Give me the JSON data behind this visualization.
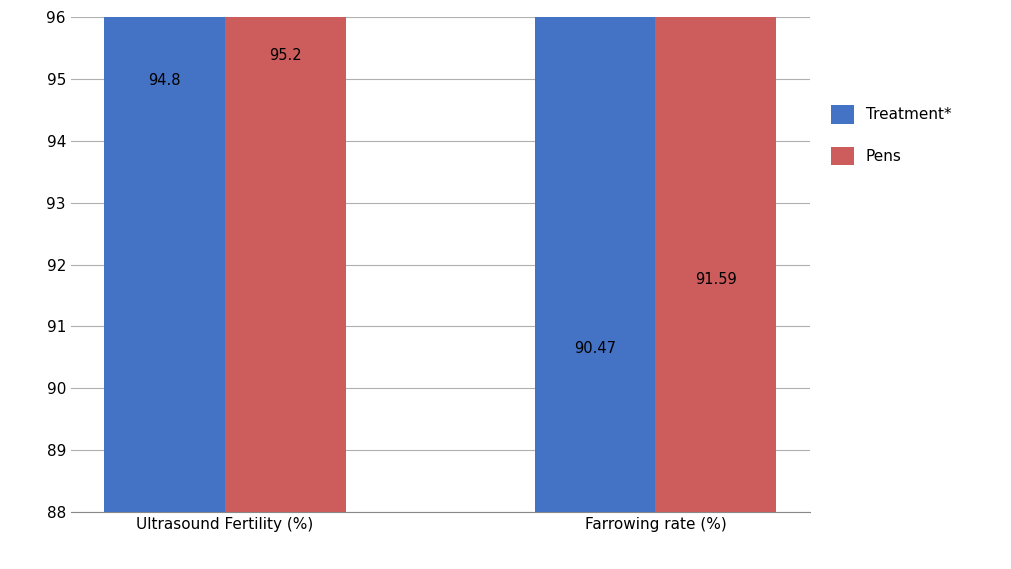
{
  "categories": [
    "Ultrasound Fertility (%)",
    "Farrowing rate (%)"
  ],
  "treatment_values": [
    94.8,
    90.47
  ],
  "pens_values": [
    95.2,
    91.59
  ],
  "treatment_color": "#4472C4",
  "pens_color": "#CD5C5C",
  "legend_labels": [
    "Treatment*",
    "Pens"
  ],
  "ylim": [
    88,
    96
  ],
  "yticks": [
    88,
    89,
    90,
    91,
    92,
    93,
    94,
    95,
    96
  ],
  "bar_width": 0.28,
  "label_fontsize": 11,
  "tick_fontsize": 11,
  "annotation_fontsize": 10.5,
  "background_color": "#ffffff",
  "grid_color": "#b0b0b0"
}
